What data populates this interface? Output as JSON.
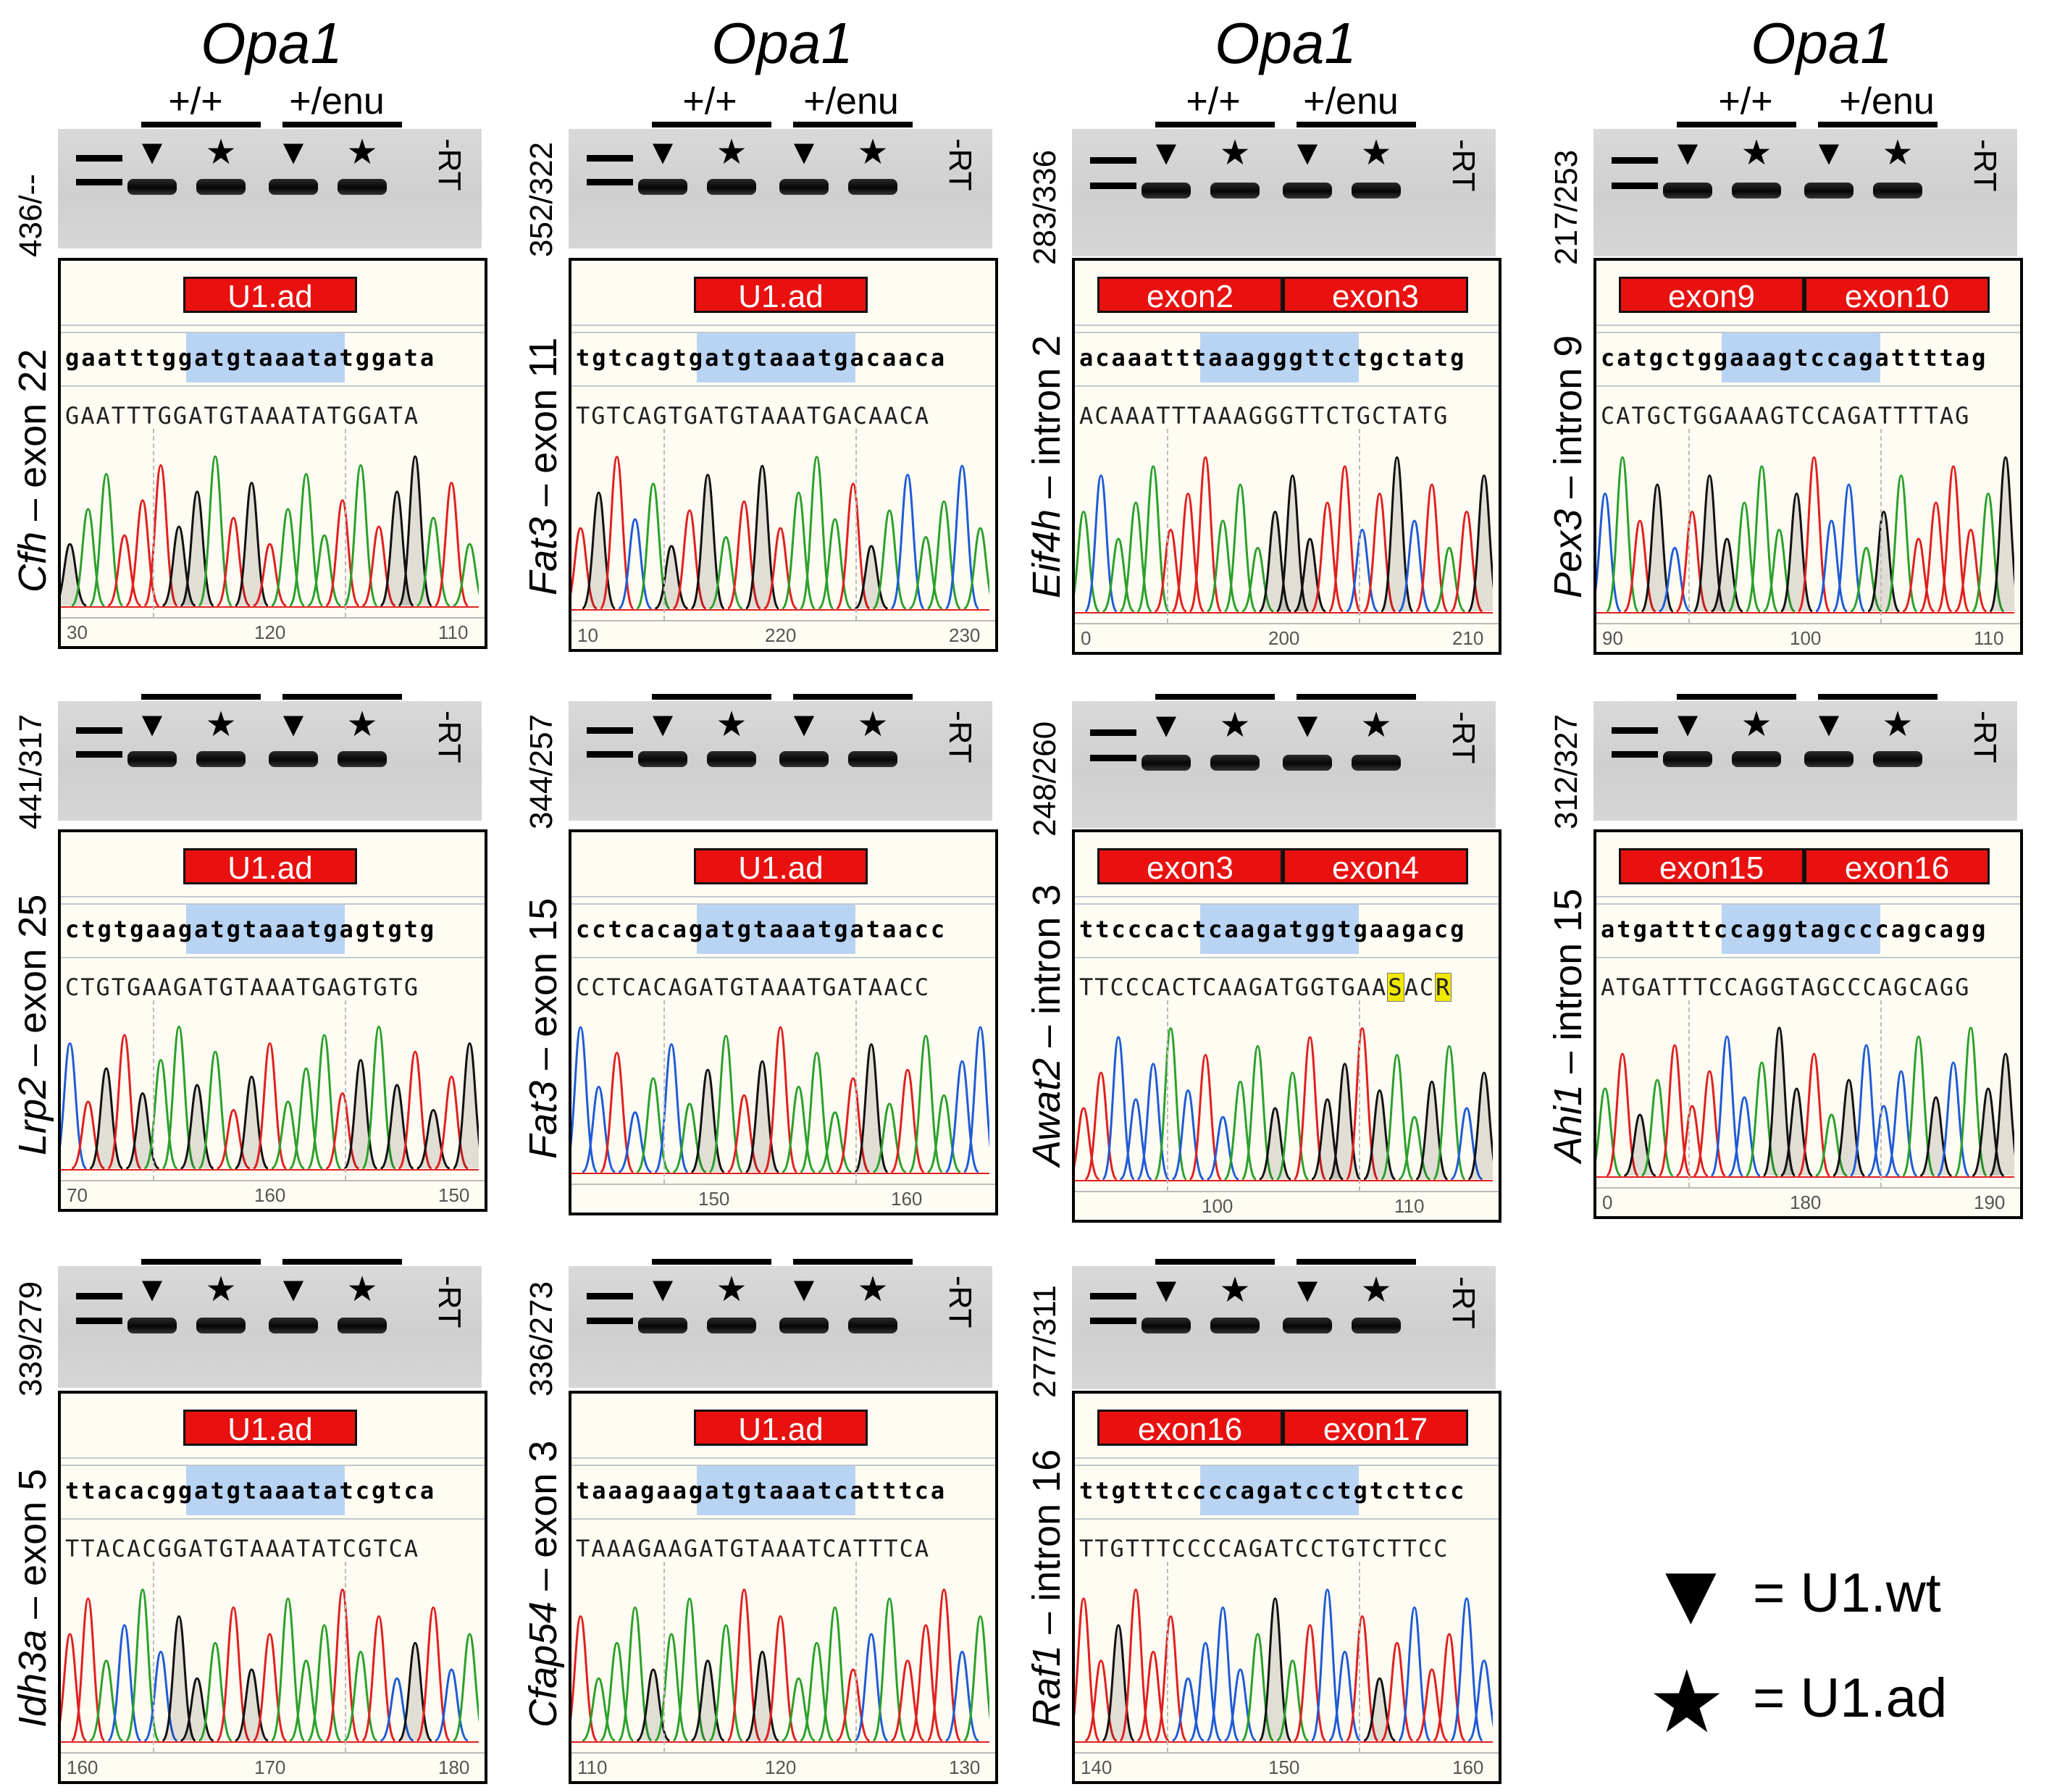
{
  "header": {
    "titles": [
      "Opa1",
      "Opa1",
      "Opa1",
      "Opa1"
    ],
    "group_wt": "+/+",
    "group_enu": "+/enu",
    "minus_rt": "-RT"
  },
  "legend": {
    "items": [
      {
        "symbol": "▼",
        "text": "= U1.wt"
      },
      {
        "symbol": "★",
        "text": "= U1.ad"
      }
    ]
  },
  "panels": [
    {
      "gene": "Cfh",
      "feature": " – exon 22",
      "sizes": "436/--",
      "tags": [
        "U1.ad"
      ],
      "seq_lower": "gaatttggatgtaaatatggata",
      "seq_upper": "GAATTTGGATGTAAATATGGATA",
      "ticks": [
        "30",
        "120",
        "110"
      ]
    },
    {
      "gene": "Fat3",
      "feature": " – exon 11",
      "sizes": "352/322",
      "tags": [
        "U1.ad"
      ],
      "seq_lower": "tgtcagtgatgtaaatgacaaca",
      "seq_upper": "TGTCAGTGATGTAAATGACAACA",
      "ticks": [
        "10",
        "220",
        "230"
      ]
    },
    {
      "gene": "Eif4h",
      "feature": " – intron 2",
      "sizes": "283/336",
      "tags": [
        "exon2",
        "exon3"
      ],
      "seq_lower": "acaaatttaaagggttctgctatg",
      "seq_upper": "ACAAATTTAAAGGGTTCTGCTATG",
      "ticks": [
        "0",
        "200",
        "210"
      ]
    },
    {
      "gene": "Pex3",
      "feature": " – intron 9",
      "sizes": "217/253",
      "tags": [
        "exon9",
        "exon10"
      ],
      "seq_lower": "catgctggaaagtccagattttag",
      "seq_upper": "CATGCTGGAAAGTCCAGATTTTAG",
      "ticks": [
        "90",
        "100",
        "110"
      ]
    },
    {
      "gene": "Lrp2",
      "feature": " – exon 25",
      "sizes": "441/317",
      "tags": [
        "U1.ad"
      ],
      "seq_lower": "ctgtgaagatgtaaatgagtgtg",
      "seq_upper": "CTGTGAAGATGTAAATGAGTGTG",
      "ticks": [
        "70",
        "160",
        "150"
      ]
    },
    {
      "gene": "Fat3",
      "feature": " – exon 15",
      "sizes": "344/257",
      "tags": [
        "U1.ad"
      ],
      "seq_lower": "cctcacagatgtaaatgataacc",
      "seq_upper": "CCTCACAGATGTAAATGATAACC",
      "ticks": [
        "150",
        "160"
      ]
    },
    {
      "gene": "Awat2",
      "feature": " – intron 3",
      "sizes": "248/260",
      "tags": [
        "exon3",
        "exon4"
      ],
      "seq_lower": "ttcccactcaagatggtgaagacg",
      "seq_upper": "TTCCCACTCAAGATGGTGAA",
      "seq_amb1": "S",
      "seq_mid": "AC",
      "seq_amb2": "R",
      "ticks": [
        "100",
        "110"
      ]
    },
    {
      "gene": "Ahi1",
      "feature": " – intron 15",
      "sizes": "312/327",
      "tags": [
        "exon15",
        "exon16"
      ],
      "seq_lower": "atgatttccaggtagcccagcagg",
      "seq_upper": "ATGATTTCCAGGTAGCCCAGCAGG",
      "ticks": [
        "0",
        "180",
        "190"
      ]
    },
    {
      "gene": "Idh3a",
      "feature": " – exon 5",
      "sizes": "339/279",
      "tags": [
        "U1.ad"
      ],
      "seq_lower": "ttacacggatgtaaatatcgtca",
      "seq_upper": "TTACACGGATGTAAATATCGTCA",
      "ticks": [
        "160",
        "170",
        "180"
      ]
    },
    {
      "gene": "Cfap54",
      "feature": " – exon 3",
      "sizes": "336/273",
      "tags": [
        "U1.ad"
      ],
      "seq_lower": "taaagaagatgtaaatcatttca",
      "seq_upper": "TAAAGAAGATGTAAATCATTTCA",
      "ticks": [
        "110",
        "120",
        "130"
      ]
    },
    {
      "gene": "Raf1",
      "feature": " – intron 16",
      "sizes": "277/311",
      "tags": [
        "exon16",
        "exon17"
      ],
      "seq_lower": "ttgtttccccagatcctgtcttcc",
      "seq_upper": "TTGTTTCCCCAGATCCTGTCTTCC",
      "ticks": [
        "140",
        "150",
        "160"
      ]
    }
  ],
  "colors": {
    "tag": "#e8110f",
    "highlight": "#b9d3f3",
    "trace_a": "#2ca02c",
    "trace_c": "#1f5bd6",
    "trace_g": "#111111",
    "trace_t": "#e02020"
  }
}
